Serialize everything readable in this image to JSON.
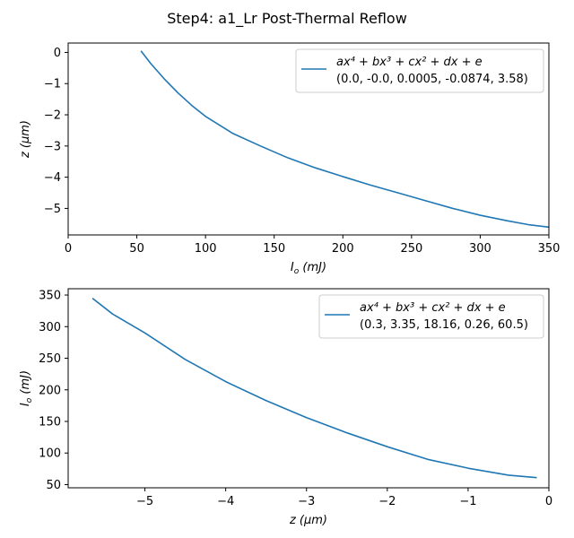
{
  "figure": {
    "title": "Step4: a1_Lr Post-Thermal Reflow"
  },
  "chart_data": [
    {
      "type": "line",
      "name": "top",
      "xlabel": "I_o (mJ)",
      "ylabel": "z (μm)",
      "xlabel_parts": {
        "sym": "I",
        "sub": "o",
        "unit": " (mJ)"
      },
      "ylabel_parts": {
        "sym": "z",
        "sub": "",
        "unit": " (μm)"
      },
      "xlim": [
        0,
        350
      ],
      "ylim": [
        -5.85,
        0.3
      ],
      "xticks": [
        0,
        50,
        100,
        150,
        200,
        250,
        300,
        350
      ],
      "yticks": [
        -5,
        -4,
        -3,
        -2,
        -1,
        0
      ],
      "grid": false,
      "legend_position": "top-right",
      "series": [
        {
          "legend_formula": "ax⁴ + bx³ + cx² + dx + e",
          "legend_params": "(0.0, -0.0, 0.0005, -0.0874, 3.58)",
          "color": "#1f77b4",
          "x": [
            53,
            60,
            70,
            80,
            90,
            100,
            120,
            140,
            160,
            180,
            200,
            220,
            240,
            260,
            280,
            300,
            320,
            335,
            350
          ],
          "y": [
            0.05,
            -0.35,
            -0.85,
            -1.3,
            -1.7,
            -2.05,
            -2.6,
            -3.0,
            -3.38,
            -3.7,
            -3.98,
            -4.25,
            -4.5,
            -4.75,
            -5.0,
            -5.22,
            -5.4,
            -5.52,
            -5.6
          ]
        }
      ]
    },
    {
      "type": "line",
      "name": "bottom",
      "xlabel": "z (μm)",
      "ylabel": "I_o (mJ)",
      "xlabel_parts": {
        "sym": "z",
        "sub": "",
        "unit": " (μm)"
      },
      "ylabel_parts": {
        "sym": "I",
        "sub": "o",
        "unit": " (mJ)"
      },
      "xlim": [
        -5.95,
        0
      ],
      "ylim": [
        45,
        360
      ],
      "xticks": [
        -5,
        -4,
        -3,
        -2,
        -1,
        0
      ],
      "yticks": [
        50,
        100,
        150,
        200,
        250,
        300,
        350
      ],
      "grid": false,
      "legend_position": "top-right",
      "series": [
        {
          "legend_formula": "ax⁴ + bx³ + cx² + dx + e",
          "legend_params": "(0.3, 3.35, 18.16, 0.26, 60.5)",
          "color": "#1f77b4",
          "x": [
            -5.65,
            -5.4,
            -5.0,
            -4.5,
            -4.0,
            -3.5,
            -3.0,
            -2.5,
            -2.0,
            -1.5,
            -1.0,
            -0.5,
            -0.15
          ],
          "y": [
            345,
            320,
            290,
            248,
            213,
            183,
            156,
            132,
            110,
            90,
            76,
            65,
            61
          ]
        }
      ]
    }
  ]
}
